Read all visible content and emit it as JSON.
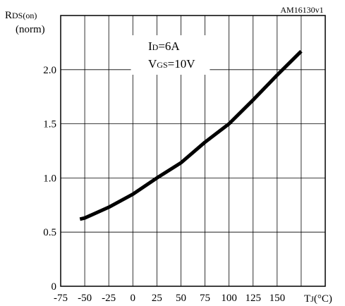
{
  "chart_data": {
    "type": "line",
    "figure_code": "AM16130v1",
    "ylabel": {
      "main": "R",
      "sub": "DS(on)",
      "line2": "(norm)"
    },
    "xlabel": {
      "main": "T",
      "sub": "J",
      "unit": "(°C)"
    },
    "annotations": [
      {
        "main": "I",
        "sub": "D",
        "rest": "=6A"
      },
      {
        "main": "V",
        "sub": "GS",
        "rest": "=10V"
      }
    ],
    "x_ticks": [
      "-75",
      "-50",
      "-25",
      "0",
      "25",
      "50",
      "75",
      "100",
      "125",
      "150"
    ],
    "y_ticks": [
      "0",
      "0.5",
      "1.0",
      "1.5",
      "2.0"
    ],
    "xlim": [
      -75,
      200
    ],
    "ylim": [
      0,
      2.5
    ],
    "grid": true,
    "series": [
      {
        "x": [
          -55,
          -50,
          -25,
          0,
          25,
          50,
          75,
          100,
          125,
          150,
          175
        ],
        "y": [
          0.62,
          0.63,
          0.73,
          0.85,
          1.0,
          1.14,
          1.33,
          1.5,
          1.72,
          1.95,
          2.17
        ]
      }
    ]
  }
}
